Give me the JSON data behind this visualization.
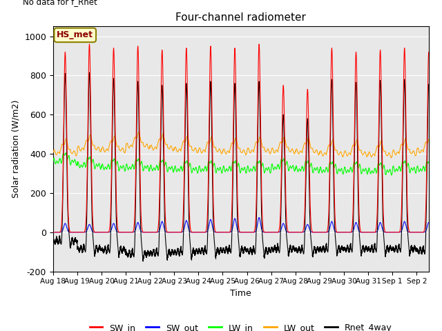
{
  "title": "Four-channel radiometer",
  "top_left_text": "No data for f_Rnet",
  "ylabel": "Solar radiation (W/m2)",
  "xlabel": "Time",
  "ylim": [
    -200,
    1050
  ],
  "num_days": 15.5,
  "annotation_box": "HS_met",
  "x_tick_labels": [
    "Aug 18",
    "Aug 19",
    "Aug 20",
    "Aug 21",
    "Aug 22",
    "Aug 23",
    "Aug 24",
    "Aug 25",
    "Aug 26",
    "Aug 27",
    "Aug 28",
    "Aug 29",
    "Aug 30",
    "Aug 31",
    "Sep 1",
    "Sep 2"
  ],
  "legend_entries": [
    {
      "label": "SW_in",
      "color": "#FF0000"
    },
    {
      "label": "SW_out",
      "color": "#0000FF"
    },
    {
      "label": "LW_in",
      "color": "#00FF00"
    },
    {
      "label": "LW_out",
      "color": "#FFA500"
    },
    {
      "label": "Rnet_4way",
      "color": "#000000"
    }
  ],
  "colors": {
    "SW_in": "#FF0000",
    "SW_out": "#0000FF",
    "LW_in": "#00FF00",
    "LW_out": "#FFA500",
    "Rnet_4way": "#000000",
    "background": "#E8E8E8",
    "grid": "#FFFFFF"
  },
  "annotation_box_color": "#FFFFCC",
  "annotation_box_edge": "#8B8000",
  "yticks": [
    -200,
    0,
    200,
    400,
    600,
    800,
    1000
  ]
}
